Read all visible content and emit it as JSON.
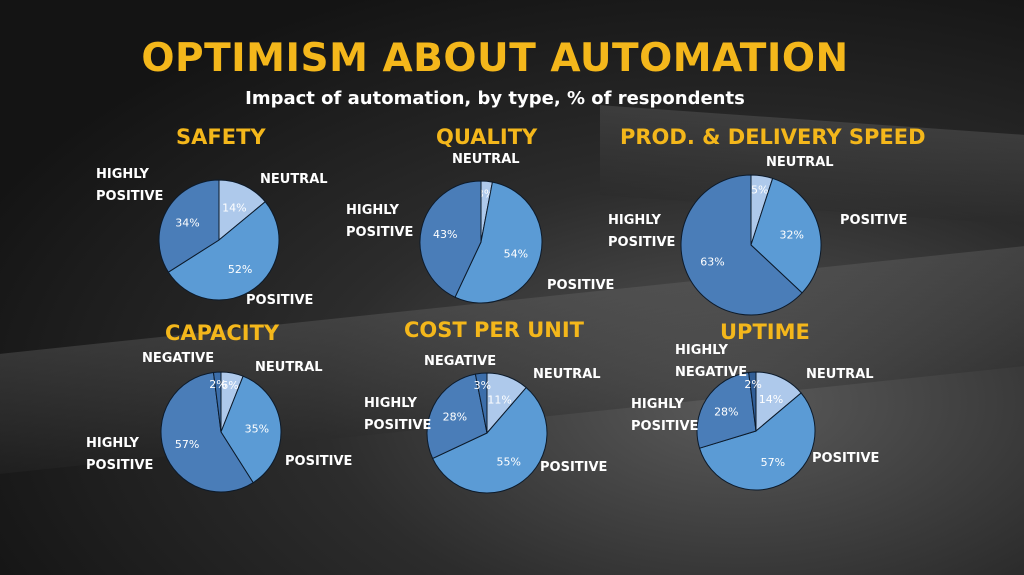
{
  "title": "OPTIMISM ABOUT AUTOMATION",
  "subtitle": "Impact of automation, by type, % of respondents",
  "colors": {
    "title": "#f4b71b",
    "neutral": "#aec9eb",
    "positive": "#5b9bd5",
    "highly_positive": "#4a7db8",
    "negative": "#3c6eaa",
    "highly_negative": "#315e96",
    "outline": "#0c1a2a"
  },
  "chart_data": [
    {
      "type": "pie",
      "title": "SAFETY",
      "slices": [
        {
          "label": "NEUTRAL",
          "value": 14,
          "text": "14%",
          "color": "#aec9eb"
        },
        {
          "label": "POSITIVE",
          "value": 52,
          "text": "52%",
          "color": "#5b9bd5"
        },
        {
          "label": "HIGHLY POSITIVE",
          "value": 34,
          "text": "34%",
          "color": "#4a7db8"
        }
      ]
    },
    {
      "type": "pie",
      "title": "QUALITY",
      "slices": [
        {
          "label": "NEUTRAL",
          "value": 3,
          "text": "3%",
          "color": "#aec9eb"
        },
        {
          "label": "POSITIVE",
          "value": 54,
          "text": "54%",
          "color": "#5b9bd5"
        },
        {
          "label": "HIGHLY POSITIVE",
          "value": 43,
          "text": "43%",
          "color": "#4a7db8"
        }
      ]
    },
    {
      "type": "pie",
      "title": "PROD. & DELIVERY SPEED",
      "slices": [
        {
          "label": "NEUTRAL",
          "value": 5,
          "text": "5%",
          "color": "#aec9eb"
        },
        {
          "label": "POSITIVE",
          "value": 32,
          "text": "32%",
          "color": "#5b9bd5"
        },
        {
          "label": "HIGHLY POSITIVE",
          "value": 63,
          "text": "63%",
          "color": "#4a7db8"
        }
      ]
    },
    {
      "type": "pie",
      "title": "CAPACITY",
      "slices": [
        {
          "label": "NEUTRAL",
          "value": 6,
          "text": "6%",
          "color": "#aec9eb"
        },
        {
          "label": "POSITIVE",
          "value": 35,
          "text": "35%",
          "color": "#5b9bd5"
        },
        {
          "label": "HIGHLY POSITIVE",
          "value": 57,
          "text": "57%",
          "color": "#4a7db8"
        },
        {
          "label": "NEGATIVE",
          "value": 2,
          "text": "2%",
          "color": "#3c6eaa"
        }
      ]
    },
    {
      "type": "pie",
      "title": "COST PER UNIT",
      "slices": [
        {
          "label": "NEUTRAL",
          "value": 11,
          "text": "11%",
          "color": "#aec9eb"
        },
        {
          "label": "POSITIVE",
          "value": 55,
          "text": "55%",
          "color": "#5b9bd5"
        },
        {
          "label": "HIGHLY POSITIVE",
          "value": 28,
          "text": "28%",
          "color": "#4a7db8"
        },
        {
          "label": "NEGATIVE",
          "value": 3,
          "text": "3%",
          "color": "#3c6eaa"
        }
      ]
    },
    {
      "type": "pie",
      "title": "UPTIME",
      "slices": [
        {
          "label": "NEUTRAL",
          "value": 14,
          "text": "14%",
          "color": "#aec9eb"
        },
        {
          "label": "POSITIVE",
          "value": 57,
          "text": "57%",
          "color": "#5b9bd5"
        },
        {
          "label": "HIGHLY POSITIVE",
          "value": 28,
          "text": "28%",
          "color": "#4a7db8"
        },
        {
          "label": "HIGHLY NEGATIVE",
          "value": 2,
          "text": "2%",
          "color": "#315e96"
        }
      ]
    }
  ]
}
